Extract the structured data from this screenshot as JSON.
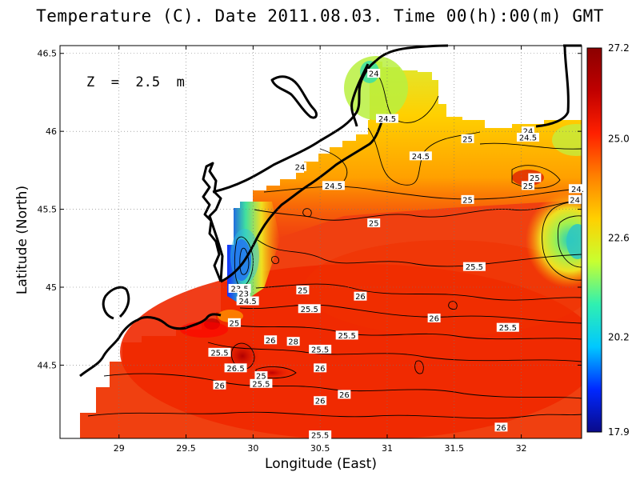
{
  "title": "Temperature (C). Date 2011.08.03. Time 00(h):00(m) GMT",
  "depth_label": "Z  =  2.5  m",
  "xlabel": "Longitude (East)",
  "ylabel": "Latitude (North)",
  "x_ticks": [
    "29",
    "29.5",
    "30",
    "30.5",
    "31",
    "31.5",
    "32"
  ],
  "y_ticks": [
    "46.5",
    "46",
    "45.5",
    "45",
    "44.5"
  ],
  "colorbar": {
    "labels": [
      "27.2",
      "25.0",
      "22.6",
      "20.2",
      "17.9"
    ],
    "min": 17.9,
    "max": 27.2,
    "colors": [
      "#0a0a8a",
      "#0028ff",
      "#00c8ff",
      "#30f0b0",
      "#c8ff30",
      "#ffd000",
      "#ff8000",
      "#ff2000",
      "#c00000",
      "#8b0000"
    ]
  },
  "contour_labels": [
    {
      "text": "24",
      "lon": 30.9,
      "lat": 46.37
    },
    {
      "text": "24.5",
      "lon": 31.0,
      "lat": 46.08
    },
    {
      "text": "25",
      "lon": 31.6,
      "lat": 45.95
    },
    {
      "text": "24.5",
      "lon": 31.25,
      "lat": 45.84
    },
    {
      "text": "24",
      "lon": 32.05,
      "lat": 46.0
    },
    {
      "text": "24.5",
      "lon": 32.05,
      "lat": 45.96
    },
    {
      "text": "24",
      "lon": 30.35,
      "lat": 45.77
    },
    {
      "text": "24.5",
      "lon": 30.6,
      "lat": 45.65
    },
    {
      "text": "25",
      "lon": 32.1,
      "lat": 45.7
    },
    {
      "text": "25",
      "lon": 32.05,
      "lat": 45.65
    },
    {
      "text": "25",
      "lon": 31.6,
      "lat": 45.56
    },
    {
      "text": "24.",
      "lon": 32.42,
      "lat": 45.63
    },
    {
      "text": "24",
      "lon": 32.4,
      "lat": 45.56
    },
    {
      "text": "25",
      "lon": 30.9,
      "lat": 45.41
    },
    {
      "text": "25.5",
      "lon": 31.65,
      "lat": 45.13
    },
    {
      "text": "25",
      "lon": 30.37,
      "lat": 44.98
    },
    {
      "text": "23.5",
      "lon": 29.9,
      "lat": 44.99
    },
    {
      "text": "23",
      "lon": 29.93,
      "lat": 44.96
    },
    {
      "text": "24.5",
      "lon": 29.96,
      "lat": 44.91
    },
    {
      "text": "26",
      "lon": 30.8,
      "lat": 44.94
    },
    {
      "text": "25.5",
      "lon": 30.42,
      "lat": 44.86
    },
    {
      "text": "26",
      "lon": 31.35,
      "lat": 44.8
    },
    {
      "text": "25",
      "lon": 29.86,
      "lat": 44.77
    },
    {
      "text": "25.5",
      "lon": 31.9,
      "lat": 44.74
    },
    {
      "text": "25.5",
      "lon": 30.7,
      "lat": 44.69
    },
    {
      "text": "26",
      "lon": 30.13,
      "lat": 44.66
    },
    {
      "text": "28",
      "lon": 30.3,
      "lat": 44.65
    },
    {
      "text": "25.5",
      "lon": 30.5,
      "lat": 44.6
    },
    {
      "text": "25.5",
      "lon": 29.75,
      "lat": 44.58
    },
    {
      "text": "26.5",
      "lon": 29.87,
      "lat": 44.48
    },
    {
      "text": "26",
      "lon": 30.5,
      "lat": 44.48
    },
    {
      "text": "25",
      "lon": 30.06,
      "lat": 44.43
    },
    {
      "text": "25.5",
      "lon": 30.06,
      "lat": 44.38
    },
    {
      "text": "26",
      "lon": 29.75,
      "lat": 44.37
    },
    {
      "text": "26",
      "lon": 30.68,
      "lat": 44.31
    },
    {
      "text": "26",
      "lon": 30.5,
      "lat": 44.27
    },
    {
      "text": "26",
      "lon": 31.85,
      "lat": 44.1
    },
    {
      "text": "25.5",
      "lon": 30.5,
      "lat": 44.05
    }
  ]
}
